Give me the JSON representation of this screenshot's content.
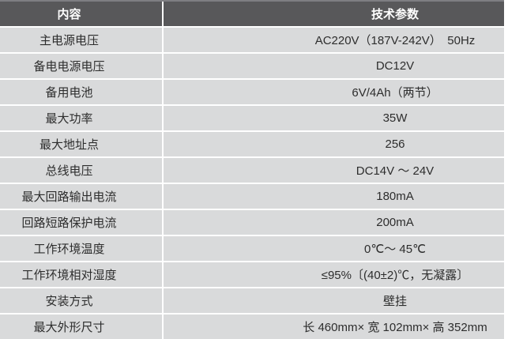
{
  "table": {
    "header": {
      "content_col": "内容",
      "params_col": "技术参数"
    },
    "rows": [
      {
        "label": "主电源电压",
        "value": "AC220V（187V-242V）　50Hz"
      },
      {
        "label": "备电电源电压",
        "value": "DC12V"
      },
      {
        "label": "备用电池",
        "value": "6V/4Ah（两节）"
      },
      {
        "label": "最大功率",
        "value": "35W"
      },
      {
        "label": "最大地址点",
        "value": "256"
      },
      {
        "label": "总线电压",
        "value": "DC14V ～ 24V"
      },
      {
        "label": "最大回路输出电流",
        "value": "180mA"
      },
      {
        "label": "回路短路保护电流",
        "value": "200mA"
      },
      {
        "label": "工作环境温度",
        "value": "0℃～ 45℃"
      },
      {
        "label": "工作环境相对湿度",
        "value": "≤95%〔(40±2)℃，无凝露〕"
      },
      {
        "label": "安装方式",
        "value": "壁挂"
      },
      {
        "label": "最大外形尺寸",
        "value": "长 460mm× 宽 102mm× 高 352mm"
      }
    ],
    "colors": {
      "header_bg": "#58585a",
      "header_topline": "#7e7e82",
      "header_text": "#ffffff",
      "row_bg": "#d9dadb",
      "body_text": "#2d2d2d",
      "divider": "#ffffff"
    }
  }
}
